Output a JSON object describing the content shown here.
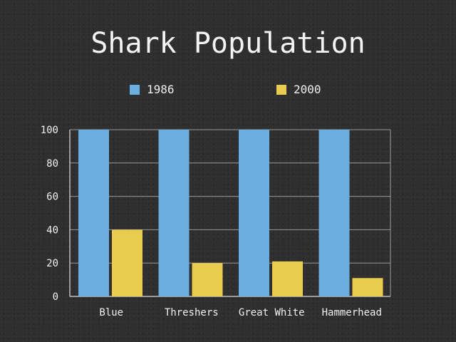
{
  "chart_data": {
    "type": "bar",
    "title": "Shark Population",
    "categories": [
      "Blue",
      "Threshers",
      "Great White",
      "Hammerhead"
    ],
    "series": [
      {
        "name": "1986",
        "values": [
          100,
          100,
          100,
          100
        ],
        "color": "#6aaee0"
      },
      {
        "name": "2000",
        "values": [
          40,
          20,
          21,
          11
        ],
        "color": "#e9cc4e"
      }
    ],
    "ylim": [
      0,
      100
    ],
    "yticks": [
      0,
      20,
      40,
      60,
      80,
      100
    ],
    "grid": true,
    "legend_position": "top"
  }
}
